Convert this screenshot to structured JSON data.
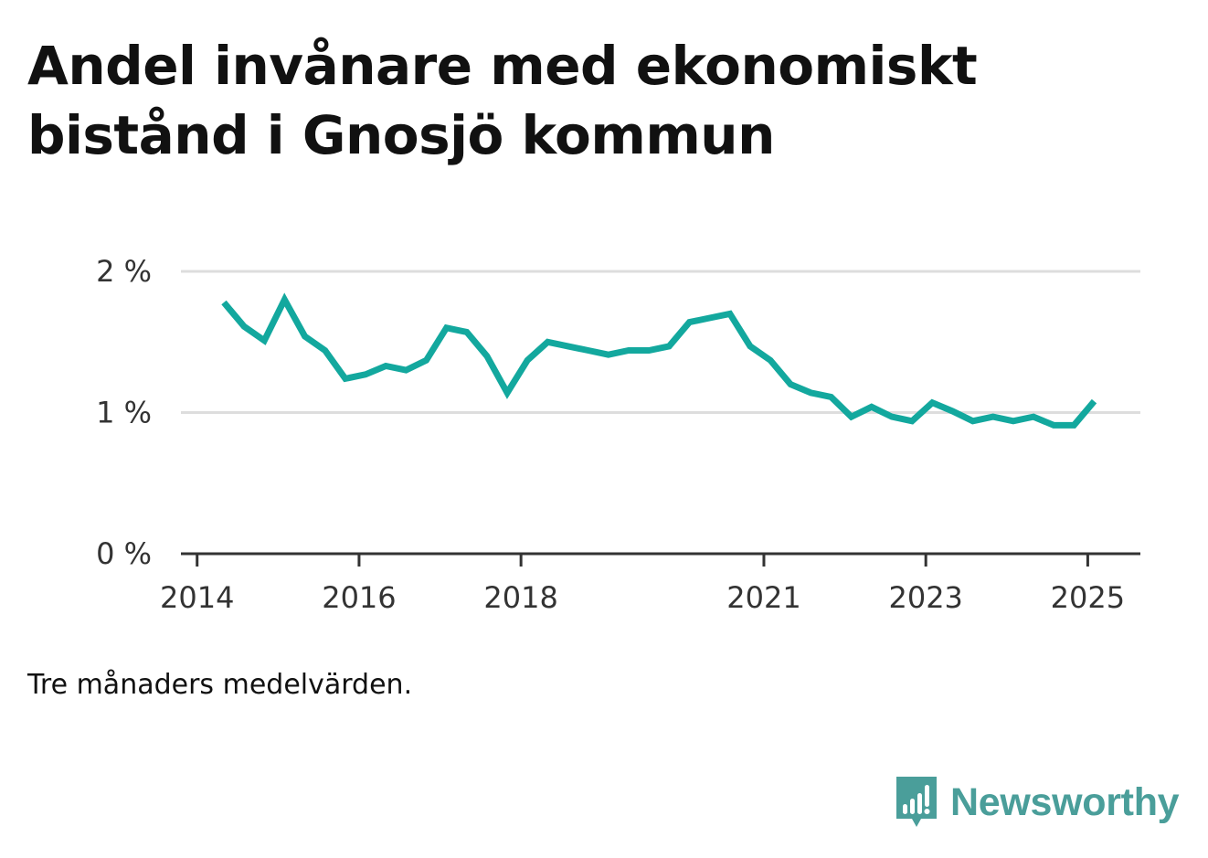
{
  "title": "Andel invånare med ekonomiskt bistånd i Gnosjö kommun",
  "note": "Tre månaders medelvärden.",
  "brand": {
    "name": "Newsworthy",
    "logo_icon": "bar-chart-speech-bubble-icon",
    "color": "#4a9e9a"
  },
  "colors": {
    "line": "#13a89e",
    "grid": "#dddddd",
    "axis": "#333333"
  },
  "chart_data": {
    "type": "line",
    "title": "Andel invånare med ekonomiskt bistånd i Gnosjö kommun",
    "xlabel": "",
    "ylabel": "",
    "ylim": [
      0,
      2
    ],
    "yticks": [
      {
        "value": 0,
        "label": "0 %"
      },
      {
        "value": 1,
        "label": "1 %"
      },
      {
        "value": 2,
        "label": "2 %"
      }
    ],
    "xticks": [
      {
        "value": 2014.0,
        "label": "2014"
      },
      {
        "value": 2016.0,
        "label": "2016"
      },
      {
        "value": 2018.0,
        "label": "2018"
      },
      {
        "value": 2021.0,
        "label": "2021"
      },
      {
        "value": 2023.0,
        "label": "2023"
      },
      {
        "value": 2025.0,
        "label": "2025"
      }
    ],
    "xlim": [
      2013.8,
      2025.65
    ],
    "grid": true,
    "series": [
      {
        "x": [
          2014.33,
          2014.58,
          2014.83,
          2015.08,
          2015.33,
          2015.58,
          2015.83,
          2016.08,
          2016.33,
          2016.58,
          2016.83,
          2017.08,
          2017.33,
          2017.58,
          2017.83,
          2018.08,
          2018.33,
          2018.58,
          2018.83,
          2019.08,
          2019.33,
          2019.58,
          2019.83,
          2020.08,
          2020.33,
          2020.58,
          2020.83,
          2021.08,
          2021.33,
          2021.58,
          2021.83,
          2022.08,
          2022.33,
          2022.58,
          2022.83,
          2023.08,
          2023.33,
          2023.58,
          2023.83,
          2024.08,
          2024.33,
          2024.58,
          2024.83,
          2025.08
        ],
        "values": [
          1.78,
          1.61,
          1.51,
          1.8,
          1.54,
          1.44,
          1.24,
          1.27,
          1.33,
          1.3,
          1.37,
          1.6,
          1.57,
          1.4,
          1.14,
          1.37,
          1.5,
          1.47,
          1.44,
          1.41,
          1.44,
          1.44,
          1.47,
          1.64,
          1.67,
          1.7,
          1.47,
          1.37,
          1.2,
          1.14,
          1.11,
          0.97,
          1.04,
          0.97,
          0.94,
          1.07,
          1.01,
          0.94,
          0.97,
          0.94,
          0.97,
          0.91,
          0.91,
          1.08
        ]
      }
    ]
  }
}
